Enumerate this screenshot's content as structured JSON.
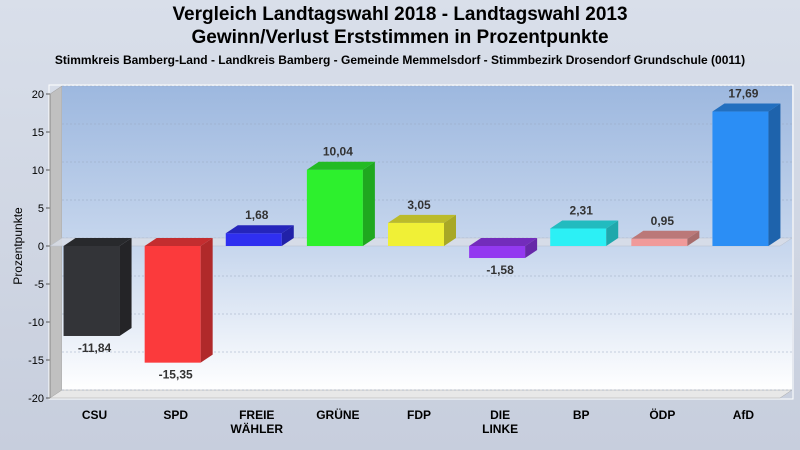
{
  "chart_data": {
    "type": "bar",
    "title": "Vergleich Landtagswahl 2018 - Landtagswahl 2013",
    "subtitle": "Gewinn/Verlust Erststimmen in Prozentpunkte",
    "subtitle2": "Stimmkreis Bamberg-Land - Landkreis Bamberg - Gemeinde Memmelsdorf - Stimmbezirk Drosendorf Grundschule (0011)",
    "ylabel": "Prozentpunkte",
    "ylim": [
      -20,
      20
    ],
    "yticks": [
      20,
      15,
      10,
      5,
      0,
      -5,
      -10,
      -15,
      -20
    ],
    "categories": [
      "CSU",
      "SPD",
      "FREIE WÄHLER",
      "GRÜNE",
      "FDP",
      "DIE LINKE",
      "BP",
      "ÖDP",
      "AfD"
    ],
    "values": [
      -11.84,
      -15.35,
      1.68,
      10.04,
      3.05,
      -1.58,
      2.31,
      0.95,
      17.69
    ],
    "labels": [
      "-11,84",
      "-15,35",
      "1,68",
      "10,04",
      "3,05",
      "-1,58",
      "2,31",
      "0,95",
      "17,69"
    ],
    "colors": [
      "#333438",
      "#fb3a3c",
      "#2f2ff0",
      "#2df02d",
      "#f0f036",
      "#9339f0",
      "#2cf0f5",
      "#f09a9a",
      "#2b8ef5"
    ],
    "grid": true
  }
}
